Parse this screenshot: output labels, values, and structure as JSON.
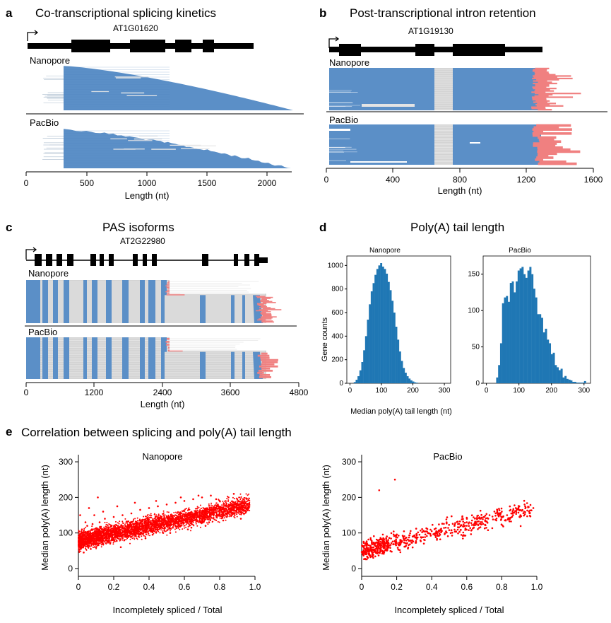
{
  "colors": {
    "read": "#5b8fc7",
    "hist": "#1f77b4",
    "polyA": "#f08080",
    "intron": "#d3d3d3",
    "scatter": "#ff0000",
    "exon": "#000000"
  },
  "panel_a": {
    "label": "a",
    "title": "Co-transcriptional splicing kinetics",
    "gene": "AT1G01620",
    "tracks": [
      "Nanopore",
      "PacBio"
    ],
    "xlabel": "Length (nt)",
    "ticks": [
      "0",
      "500",
      "1000",
      "1500",
      "2000"
    ]
  },
  "panel_b": {
    "label": "b",
    "title": "Post-transcriptional intron retention",
    "gene": "AT1G19130",
    "tracks": [
      "Nanopore",
      "PacBio"
    ],
    "xlabel": "Length (nt)",
    "ticks": [
      "0",
      "400",
      "800",
      "1200",
      "1600"
    ]
  },
  "panel_c": {
    "label": "c",
    "title": "PAS isoforms",
    "gene": "AT2G22980",
    "tracks": [
      "Nanopore",
      "PacBio"
    ],
    "xlabel": "Length (nt)",
    "ticks": [
      "0",
      "1200",
      "2400",
      "3600",
      "4800"
    ]
  },
  "panel_d": {
    "label": "d",
    "title": "Poly(A) tail length",
    "xlabel": "Median poly(A) tail length (nt)",
    "ylabel": "Gene counts"
  },
  "panel_e": {
    "label": "e",
    "title": "Correlation between splicing and poly(A) tail length",
    "xlabel": "Incompletely spliced / Total",
    "ylabel": "Median poly(A) length (nt)"
  },
  "chart_data": [
    {
      "type": "bar",
      "title": "Nanopore",
      "xlabel": "Median poly(A) tail length (nt)",
      "ylabel": "Gene counts",
      "xlim": [
        -10,
        320
      ],
      "ylim": [
        0,
        1080
      ],
      "xticks": [
        0,
        100,
        200,
        300
      ],
      "yticks": [
        0,
        200,
        400,
        600,
        800,
        1000
      ],
      "bin_width": 6,
      "bin_centers": [
        15,
        21,
        27,
        33,
        39,
        45,
        51,
        57,
        63,
        69,
        75,
        81,
        87,
        93,
        99,
        105,
        111,
        117,
        123,
        129,
        135,
        141,
        147,
        153,
        159,
        165,
        171,
        177,
        183,
        189,
        195,
        201,
        207,
        213
      ],
      "values": [
        10,
        30,
        60,
        110,
        180,
        280,
        400,
        540,
        670,
        780,
        850,
        920,
        970,
        1000,
        1020,
        990,
        970,
        930,
        860,
        790,
        700,
        600,
        480,
        370,
        270,
        190,
        130,
        90,
        60,
        40,
        25,
        15,
        8,
        5
      ]
    },
    {
      "type": "bar",
      "title": "PacBio",
      "xlabel": "Median poly(A) tail length (nt)",
      "xlim": [
        -10,
        320
      ],
      "ylim": [
        0,
        175
      ],
      "xticks": [
        0,
        100,
        200,
        300
      ],
      "yticks": [
        0,
        50,
        100,
        150
      ],
      "bin_width": 6,
      "bin_centers": [
        33,
        39,
        45,
        51,
        57,
        63,
        69,
        75,
        81,
        87,
        93,
        99,
        105,
        111,
        117,
        123,
        129,
        135,
        141,
        147,
        153,
        159,
        165,
        171,
        177,
        183,
        189,
        195,
        201,
        207,
        213,
        219,
        225,
        231,
        237,
        243,
        249,
        255,
        261,
        267,
        273,
        279,
        285,
        291,
        297,
        303
      ],
      "values": [
        8,
        25,
        55,
        110,
        118,
        120,
        112,
        138,
        140,
        125,
        140,
        155,
        158,
        160,
        150,
        145,
        155,
        160,
        150,
        130,
        118,
        95,
        95,
        90,
        70,
        75,
        60,
        55,
        40,
        42,
        25,
        22,
        18,
        20,
        8,
        10,
        6,
        5,
        4,
        2,
        2,
        1,
        1,
        1,
        1,
        3
      ]
    },
    {
      "type": "scatter",
      "title": "Nanopore",
      "xlabel": "Incompletely spliced / Total",
      "ylabel": "Median poly(A) length (nt)",
      "xlim": [
        0,
        1.0
      ],
      "ylim": [
        -10,
        320
      ],
      "xticks": [
        0,
        0.2,
        0.4,
        0.6,
        0.8,
        1.0
      ],
      "yticks": [
        0,
        100,
        200,
        300
      ],
      "x": [
        0.01,
        0.02,
        0.03,
        0.04,
        0.05,
        0.06,
        0.07,
        0.08,
        0.1,
        0.12,
        0.14,
        0.16,
        0.18,
        0.2,
        0.22,
        0.25,
        0.28,
        0.3,
        0.33,
        0.36,
        0.4,
        0.43,
        0.46,
        0.5,
        0.53,
        0.56,
        0.6,
        0.63,
        0.66,
        0.7,
        0.73,
        0.76,
        0.8,
        0.83,
        0.86,
        0.9,
        0.93,
        0.96,
        0.02,
        0.05,
        0.08,
        0.12,
        0.15,
        0.2,
        0.25,
        0.3,
        0.35,
        0.4,
        0.45,
        0.5,
        0.55,
        0.6,
        0.65,
        0.7,
        0.75,
        0.8,
        0.85,
        0.9,
        0.03,
        0.07,
        0.1,
        0.18,
        0.26,
        0.34,
        0.42,
        0.52,
        0.62,
        0.72,
        0.82,
        0.92,
        0.04,
        0.09,
        0.14,
        0.22,
        0.32,
        0.44,
        0.58,
        0.68,
        0.78,
        0.88,
        0.01,
        0.06,
        0.11,
        0.16,
        0.24,
        0.38,
        0.48,
        0.64,
        0.74,
        0.84
      ],
      "y": [
        60,
        70,
        80,
        75,
        85,
        90,
        78,
        95,
        88,
        100,
        92,
        105,
        98,
        110,
        102,
        115,
        108,
        120,
        112,
        125,
        130,
        122,
        135,
        128,
        140,
        145,
        138,
        150,
        155,
        148,
        160,
        158,
        165,
        162,
        170,
        168,
        175,
        172,
        110,
        120,
        125,
        130,
        140,
        145,
        150,
        155,
        165,
        170,
        175,
        180,
        185,
        190,
        195,
        200,
        205,
        190,
        200,
        195,
        45,
        55,
        60,
        70,
        80,
        90,
        95,
        100,
        110,
        120,
        135,
        140,
        130,
        150,
        160,
        175,
        185,
        190,
        200,
        205,
        195,
        210,
        150,
        170,
        200,
        90,
        60,
        85,
        100,
        115,
        130,
        145
      ],
      "n": 5000
    },
    {
      "type": "scatter",
      "title": "PacBio",
      "xlabel": "Incompletely spliced / Total",
      "ylabel": "Median poly(A) length (nt)",
      "xlim": [
        0,
        1.0
      ],
      "ylim": [
        -10,
        320
      ],
      "xticks": [
        0,
        0.2,
        0.4,
        0.6,
        0.8,
        1.0
      ],
      "yticks": [
        0,
        100,
        200,
        300
      ],
      "x": [
        0.02,
        0.04,
        0.05,
        0.06,
        0.08,
        0.09,
        0.1,
        0.12,
        0.13,
        0.15,
        0.18,
        0.2,
        0.22,
        0.25,
        0.28,
        0.3,
        0.33,
        0.35,
        0.38,
        0.4,
        0.43,
        0.45,
        0.48,
        0.5,
        0.53,
        0.55,
        0.58,
        0.6,
        0.63,
        0.65,
        0.68,
        0.7,
        0.73,
        0.75,
        0.78,
        0.8,
        0.83,
        0.85,
        0.88,
        0.9,
        0.93,
        0.95,
        0.98,
        0.19,
        0.1,
        0.05
      ],
      "y": [
        40,
        50,
        60,
        45,
        55,
        65,
        70,
        50,
        62,
        58,
        68,
        72,
        80,
        85,
        78,
        90,
        95,
        88,
        100,
        105,
        98,
        110,
        115,
        108,
        120,
        125,
        118,
        130,
        135,
        128,
        140,
        145,
        150,
        138,
        155,
        160,
        150,
        165,
        170,
        175,
        180,
        172,
        170,
        250,
        220,
        35
      ],
      "n": 700
    }
  ]
}
